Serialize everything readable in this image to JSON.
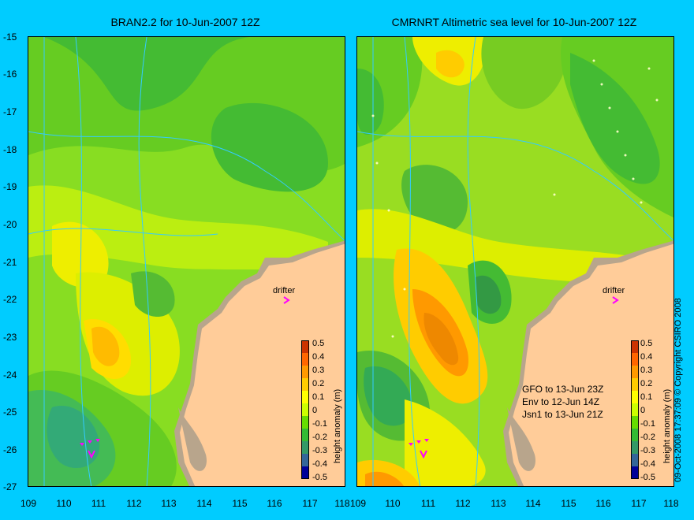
{
  "panels": [
    {
      "title": "BRAN2.2 for 10-Jun-2007 12Z",
      "drifter_label": "drifter",
      "colorbar_label": "height anomaly (m)"
    },
    {
      "title": "CMRNRT Altimetric sea level  for 10-Jun-2007 12Z",
      "drifter_label": "drifter",
      "colorbar_label": "height anomaly (m)",
      "legend": [
        "GFO to 13-Jun 23Z",
        "Env to 12-Jun 14Z",
        "Jsn1 to 13-Jun 21Z"
      ]
    }
  ],
  "y_ticks": [
    "-15",
    "-16",
    "-17",
    "-18",
    "-19",
    "-20",
    "-21",
    "-22",
    "-23",
    "-24",
    "-25",
    "-26",
    "-27"
  ],
  "x_ticks": [
    "109",
    "110",
    "111",
    "112",
    "113",
    "114",
    "115",
    "116",
    "117",
    "118"
  ],
  "colorbar_ticks": [
    "0.5",
    "0.4",
    "0.3",
    "0.2",
    "0.1",
    "0",
    "-0.1",
    "-0.2",
    "-0.3",
    "-0.4",
    "-0.5"
  ],
  "colorbar_colors": [
    "#cc3300",
    "#ff6600",
    "#ff9900",
    "#ffcc00",
    "#ffff00",
    "#ccff00",
    "#66dd00",
    "#33bb33",
    "#339966",
    "#336699",
    "#000099"
  ],
  "copyright": "09-Oct-2008 17:37:09   © Copyright CSIRO 2008",
  "colors": {
    "background": "#00ccff",
    "land": "#ffcc99",
    "coast_rock": "#b8a58c",
    "contour": "#33ccff",
    "drifter": "#ff00ff"
  }
}
